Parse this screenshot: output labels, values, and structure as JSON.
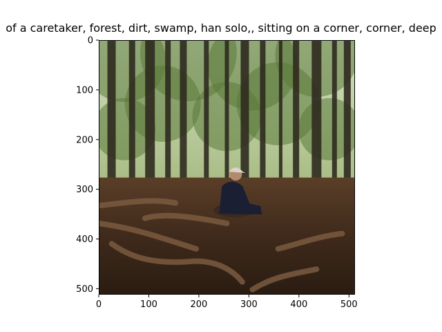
{
  "chart_data": {
    "type": "image",
    "title": "of a caretaker,  forest, dirt, swamp, han solo,, sitting on a corner, corner, deep",
    "xlabel": "",
    "ylabel": "",
    "xlim": [
      0,
      512
    ],
    "ylim": [
      512,
      0
    ],
    "x_ticks": [
      0,
      100,
      200,
      300,
      400,
      500
    ],
    "y_ticks": [
      0,
      100,
      200,
      300,
      400,
      500
    ],
    "grid": false,
    "image_description_icon": "photo-forest-caretaker-icon",
    "colors": {
      "sky": "#c9d8b4",
      "foliage": "#5b7a3a",
      "trunks": "#2f2a1f",
      "ground": "#4a3322",
      "roots": "#7a5a40",
      "coat": "#1b1f33",
      "cap": "#d9d4cc"
    }
  }
}
